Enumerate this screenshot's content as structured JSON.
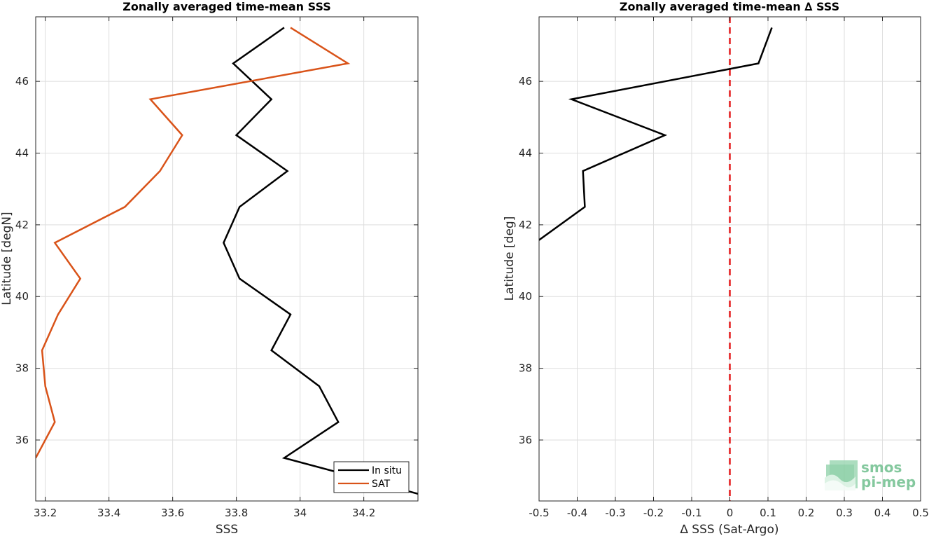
{
  "chart_data": [
    {
      "type": "line",
      "title": "Zonally averaged time-mean SSS",
      "xlabel": "SSS",
      "ylabel": "Latitude [degN]",
      "xlim": [
        33.17,
        34.37
      ],
      "ylim": [
        34.3,
        47.8
      ],
      "xticks": [
        "33.2",
        "33.4",
        "33.6",
        "33.8",
        "34",
        "34.2"
      ],
      "xtick_values": [
        33.2,
        33.4,
        33.6,
        33.8,
        34.0,
        34.2
      ],
      "yticks": [
        "36",
        "38",
        "40",
        "42",
        "44",
        "46"
      ],
      "ytick_values": [
        36,
        38,
        40,
        42,
        44,
        46
      ],
      "grid": true,
      "legend_position": "bottom-right",
      "series": [
        {
          "name": "In situ",
          "color": "#000000",
          "points": [
            [
              34.37,
              34.5
            ],
            [
              33.95,
              35.5
            ],
            [
              34.12,
              36.5
            ],
            [
              34.06,
              37.5
            ],
            [
              33.91,
              38.5
            ],
            [
              33.97,
              39.5
            ],
            [
              33.81,
              40.5
            ],
            [
              33.76,
              41.5
            ],
            [
              33.81,
              42.5
            ],
            [
              33.96,
              43.5
            ],
            [
              33.8,
              44.5
            ],
            [
              33.91,
              45.5
            ],
            [
              33.79,
              46.5
            ],
            [
              33.95,
              47.5
            ]
          ]
        },
        {
          "name": "SAT",
          "color": "#D95319",
          "points": [
            [
              33.17,
              35.5
            ],
            [
              33.23,
              36.5
            ],
            [
              33.2,
              37.5
            ],
            [
              33.19,
              38.5
            ],
            [
              33.24,
              39.5
            ],
            [
              33.31,
              40.5
            ],
            [
              33.23,
              41.5
            ],
            [
              33.45,
              42.5
            ],
            [
              33.56,
              43.5
            ],
            [
              33.63,
              44.5
            ],
            [
              33.53,
              45.5
            ],
            [
              34.15,
              46.5
            ],
            [
              33.97,
              47.5
            ]
          ]
        }
      ]
    },
    {
      "type": "line",
      "title": "Zonally averaged time-mean ∆ SSS",
      "xlabel": "∆ SSS (Sat-Argo)",
      "ylabel": "Latitude [deg]",
      "xlim": [
        -0.5,
        0.5
      ],
      "ylim": [
        34.3,
        47.8
      ],
      "xticks": [
        "-0.5",
        "-0.4",
        "-0.3",
        "-0.2",
        "-0.1",
        "0",
        "0.1",
        "0.2",
        "0.3",
        "0.4",
        "0.5"
      ],
      "xtick_values": [
        -0.5,
        -0.4,
        -0.3,
        -0.2,
        -0.1,
        0,
        0.1,
        0.2,
        0.3,
        0.4,
        0.5
      ],
      "yticks": [
        "36",
        "38",
        "40",
        "42",
        "44",
        "46"
      ],
      "ytick_values": [
        36,
        38,
        40,
        42,
        44,
        46
      ],
      "grid": true,
      "reference_line": {
        "x": 0,
        "color": "#E41A1C",
        "style": "dashed"
      },
      "series": [
        {
          "color": "#000000",
          "points": [
            [
              -0.51,
              41.5
            ],
            [
              -0.38,
              42.5
            ],
            [
              -0.385,
              43.5
            ],
            [
              -0.17,
              44.5
            ],
            [
              -0.415,
              45.5
            ],
            [
              0.075,
              46.5
            ],
            [
              0.11,
              47.5
            ]
          ]
        }
      ]
    }
  ],
  "logo": {
    "line1": "smos",
    "line2": "pi-mep",
    "color": "#6FBF8E"
  }
}
